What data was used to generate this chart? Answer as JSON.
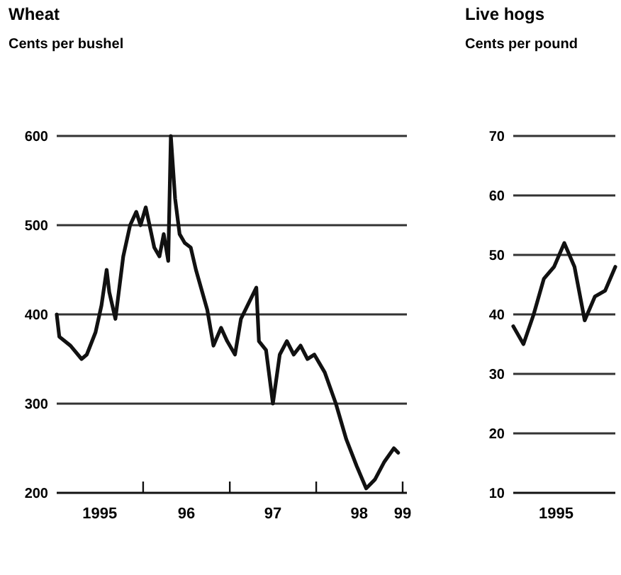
{
  "chart_data": [
    {
      "type": "line",
      "title": "Wheat",
      "ylabel": "Cents per bushel",
      "xlim": [
        "1995-01-01",
        "1999-01-19"
      ],
      "ylim": [
        200,
        600
      ],
      "yticks": [
        200,
        300,
        400,
        500,
        600
      ],
      "xticks": [
        {
          "value": "1995-07-02",
          "label": "1995"
        },
        {
          "value": "1996-01-01",
          "label": null
        },
        {
          "value": "1996-07-02",
          "label": "96"
        },
        {
          "value": "1997-01-01",
          "label": null
        },
        {
          "value": "1997-07-02",
          "label": "97"
        },
        {
          "value": "1998-01-01",
          "label": null
        },
        {
          "value": "1998-07-02",
          "label": "98"
        },
        {
          "value": "1999-01-01",
          "label": "99"
        },
        {
          "value": "1999-01-01",
          "label": null
        }
      ],
      "grid": "y",
      "x": [
        "1995-01-01",
        "1995-01-12",
        "1995-02-28",
        "1995-04-16",
        "1995-05-08",
        "1995-06-14",
        "1995-07-09",
        "1995-07-31",
        "1995-08-11",
        "1995-09-06",
        "1995-10-09",
        "1995-11-07",
        "1995-12-03",
        "1995-12-21",
        "1996-01-12",
        "1996-02-17",
        "1996-03-10",
        "1996-03-28",
        "1996-04-16",
        "1996-04-27",
        "1996-05-15",
        "1996-06-03",
        "1996-06-25",
        "1996-07-20",
        "1996-08-11",
        "1996-09-28",
        "1996-10-24",
        "1996-11-25",
        "1996-12-21",
        "1997-01-23",
        "1997-02-17",
        "1997-04-23",
        "1997-05-04",
        "1997-06-03",
        "1997-07-02",
        "1997-07-31",
        "1997-08-30",
        "1997-09-28",
        "1997-10-27",
        "1997-11-25",
        "1997-12-24",
        "1998-02-06",
        "1998-03-25",
        "1998-05-08",
        "1998-06-21",
        "1998-07-31",
        "1998-09-06",
        "1998-10-16",
        "1998-11-25",
        "1998-12-13"
      ],
      "series": [
        {
          "color": "#111111",
          "values": [
            400,
            375,
            365,
            350,
            355,
            380,
            410,
            450,
            425,
            395,
            465,
            500,
            515,
            500,
            520,
            475,
            465,
            490,
            460,
            600,
            530,
            490,
            480,
            475,
            450,
            405,
            365,
            385,
            370,
            355,
            395,
            430,
            370,
            360,
            300,
            355,
            370,
            355,
            365,
            350,
            355,
            335,
            300,
            260,
            230,
            205,
            215,
            235,
            250,
            245
          ]
        }
      ]
    },
    {
      "type": "line",
      "title": "Live hogs",
      "ylabel": "Cents per pound",
      "ylim": [
        10,
        70
      ],
      "yticks": [
        10,
        20,
        30,
        40,
        50,
        60,
        70
      ],
      "annotations": [
        "1995"
      ],
      "grid": "y",
      "categories": [
        null,
        null,
        null,
        null,
        null,
        null,
        null,
        null,
        null,
        null,
        null
      ],
      "series": [
        {
          "color": "#111111",
          "values": [
            38,
            35,
            40,
            46,
            48,
            52,
            48,
            39,
            43,
            44,
            48
          ]
        }
      ]
    }
  ]
}
